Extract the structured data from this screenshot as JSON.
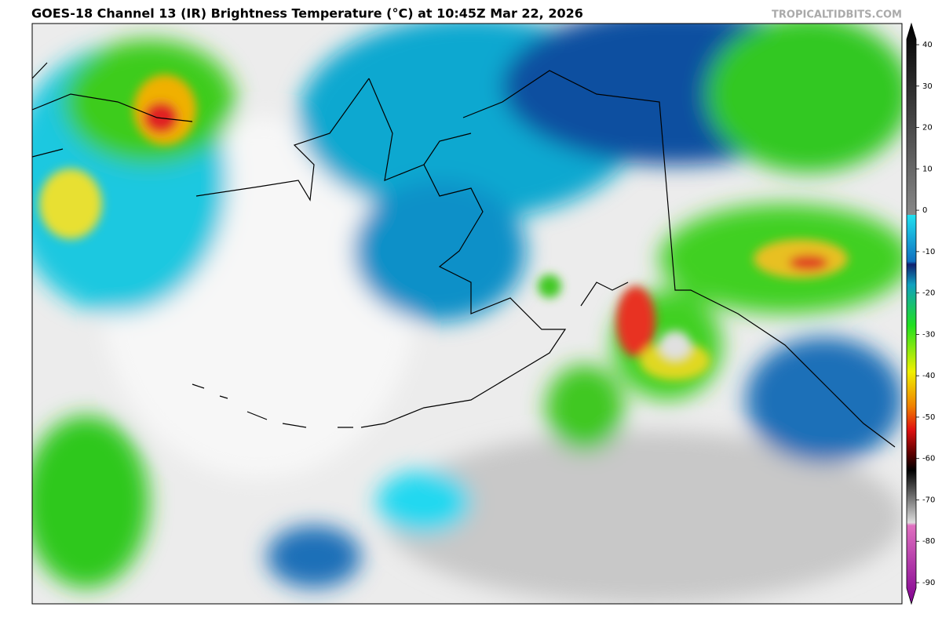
{
  "header": {
    "title": "GOES-18 Channel 13 (IR) Brightness Temperature (°C) at 10:45Z Mar 22, 2026",
    "credit": "TROPICALTIDBITS.COM"
  },
  "colorbar": {
    "ticks": [
      40,
      30,
      20,
      10,
      0,
      -10,
      -20,
      -30,
      -40,
      -50,
      -60,
      -70,
      -80,
      -90
    ]
  }
}
